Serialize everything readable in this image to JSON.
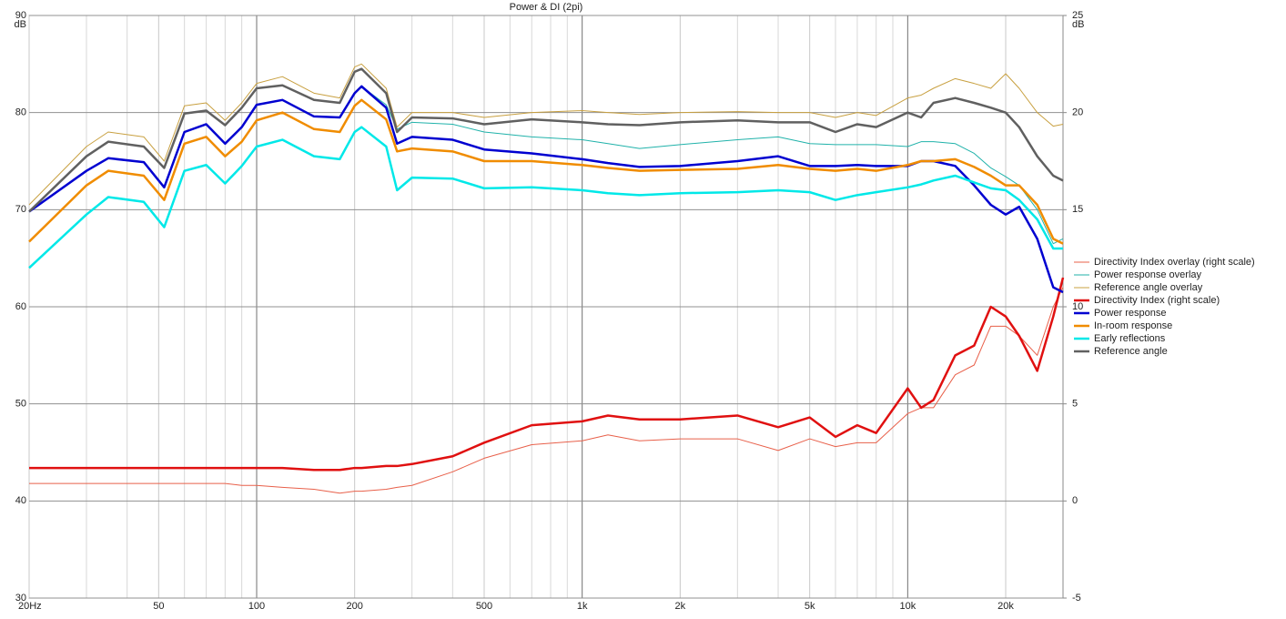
{
  "chart_data": {
    "type": "line",
    "title": "Power & DI (2pi)",
    "y_unit": "dB",
    "y2_unit": "dB",
    "log_x": true,
    "grid": true,
    "legend": "right",
    "xlim": [
      20,
      30000
    ],
    "ylim": [
      30,
      90
    ],
    "y2lim": [
      -5,
      25
    ],
    "xticks": [
      {
        "value": 20,
        "label": "20Hz"
      },
      50,
      100,
      200,
      500,
      {
        "value": 1000,
        "label": "1k"
      },
      {
        "value": 2000,
        "label": "2k"
      },
      {
        "value": 5000,
        "label": "5k"
      },
      {
        "value": 10000,
        "label": "10k"
      },
      {
        "value": 20000,
        "label": "20k"
      }
    ],
    "xminorticks": [
      30,
      40,
      60,
      70,
      80,
      90,
      300,
      400,
      600,
      700,
      800,
      900,
      3000,
      4000,
      6000,
      7000,
      8000,
      9000
    ],
    "yticks": [
      30,
      40,
      50,
      60,
      70,
      80,
      90
    ],
    "y2ticks": [
      -5,
      0,
      5,
      10,
      15,
      20,
      25
    ],
    "x": [
      20,
      30,
      35,
      45,
      52,
      60,
      70,
      80,
      90,
      100,
      120,
      150,
      180,
      200,
      210,
      250,
      270,
      300,
      400,
      500,
      700,
      1000,
      1200,
      1500,
      2000,
      3000,
      4000,
      5000,
      6000,
      7000,
      8000,
      10000,
      11000,
      12000,
      14000,
      16000,
      18000,
      20000,
      22000,
      25000,
      28000,
      30000
    ],
    "series": [
      {
        "name": "Directivity Index overlay (right scale)",
        "color": "#e8604a",
        "width": 1,
        "axis": "y2",
        "values": [
          0.9,
          0.9,
          0.9,
          0.9,
          0.9,
          0.9,
          0.9,
          0.9,
          0.8,
          0.8,
          0.7,
          0.6,
          0.4,
          0.5,
          0.5,
          0.6,
          0.7,
          0.8,
          1.5,
          2.2,
          2.9,
          3.1,
          3.4,
          3.1,
          3.2,
          3.2,
          2.6,
          3.2,
          2.8,
          3.0,
          3.0,
          4.5,
          4.8,
          4.8,
          6.5,
          7.0,
          9.0,
          9.0,
          8.5,
          7.5,
          10.0,
          11.0
        ]
      },
      {
        "name": "Power response overlay",
        "color": "#20b2aa",
        "width": 1,
        "values": [
          69.8,
          74.0,
          75.3,
          74.9,
          72.3,
          78.0,
          78.8,
          76.8,
          78.5,
          80.8,
          81.3,
          79.6,
          79.5,
          82.0,
          82.7,
          80.8,
          78.3,
          79.0,
          78.8,
          78.0,
          77.5,
          77.2,
          76.8,
          76.3,
          76.7,
          77.2,
          77.5,
          76.8,
          76.7,
          76.7,
          76.7,
          76.5,
          77.0,
          77.0,
          76.8,
          75.8,
          74.3,
          73.4,
          72.5,
          70.0,
          66.5,
          67.0
        ]
      },
      {
        "name": "Reference angle overlay",
        "color": "#c8a040",
        "width": 1,
        "values": [
          70.5,
          76.5,
          78.0,
          77.5,
          75.0,
          80.7,
          81.0,
          79.2,
          81.0,
          83.0,
          83.7,
          82.0,
          81.5,
          84.7,
          85.0,
          82.5,
          78.5,
          80.0,
          80.0,
          79.5,
          80.0,
          80.2,
          80.0,
          79.8,
          80.0,
          80.1,
          80.0,
          80.0,
          79.5,
          80.0,
          79.7,
          81.5,
          81.8,
          82.5,
          83.5,
          83.0,
          82.5,
          84.0,
          82.5,
          80.0,
          78.6,
          78.8
        ]
      },
      {
        "name": "Directivity Index (right scale)",
        "color": "#e01010",
        "width": 2.5,
        "axis": "y2",
        "values": [
          1.7,
          1.7,
          1.7,
          1.7,
          1.7,
          1.7,
          1.7,
          1.7,
          1.7,
          1.7,
          1.7,
          1.6,
          1.6,
          1.7,
          1.7,
          1.8,
          1.8,
          1.9,
          2.3,
          3.0,
          3.9,
          4.1,
          4.4,
          4.2,
          4.2,
          4.4,
          3.8,
          4.3,
          3.3,
          3.9,
          3.5,
          5.8,
          4.8,
          5.2,
          7.5,
          8.0,
          10.0,
          9.5,
          8.5,
          6.7,
          9.5,
          11.5
        ]
      },
      {
        "name": "Power response",
        "color": "#0000d0",
        "width": 2.5,
        "values": [
          69.8,
          74.0,
          75.3,
          74.9,
          72.3,
          78.0,
          78.8,
          76.8,
          78.5,
          80.8,
          81.3,
          79.6,
          79.5,
          82.0,
          82.7,
          80.5,
          76.8,
          77.5,
          77.2,
          76.2,
          75.8,
          75.2,
          74.8,
          74.4,
          74.5,
          75.0,
          75.5,
          74.5,
          74.5,
          74.6,
          74.5,
          74.5,
          75.0,
          75.0,
          74.5,
          72.5,
          70.5,
          69.5,
          70.3,
          67.0,
          62.0,
          61.5
        ]
      },
      {
        "name": "In-room response",
        "color": "#f08c00",
        "width": 2.5,
        "values": [
          66.7,
          72.5,
          74.0,
          73.5,
          71.0,
          76.8,
          77.5,
          75.5,
          77.0,
          79.2,
          80.0,
          78.3,
          78.0,
          80.7,
          81.3,
          79.3,
          76.0,
          76.3,
          76.0,
          75.0,
          75.0,
          74.6,
          74.3,
          74.0,
          74.1,
          74.2,
          74.6,
          74.2,
          74.0,
          74.2,
          74.0,
          74.6,
          75.0,
          75.0,
          75.2,
          74.4,
          73.5,
          72.5,
          72.5,
          70.5,
          67.0,
          66.5
        ]
      },
      {
        "name": "Early reflections",
        "color": "#00e8e8",
        "width": 2.5,
        "values": [
          64.0,
          69.5,
          71.3,
          70.8,
          68.2,
          74.0,
          74.6,
          72.7,
          74.5,
          76.5,
          77.2,
          75.5,
          75.2,
          78.0,
          78.5,
          76.5,
          72.0,
          73.3,
          73.2,
          72.2,
          72.3,
          72.0,
          71.7,
          71.5,
          71.7,
          71.8,
          72.0,
          71.8,
          71.0,
          71.5,
          71.8,
          72.3,
          72.6,
          73.0,
          73.5,
          72.8,
          72.2,
          72.0,
          71.0,
          69.0,
          66.0,
          66.0
        ]
      },
      {
        "name": "Reference angle",
        "color": "#606060",
        "width": 2.5,
        "values": [
          69.8,
          75.5,
          77.0,
          76.5,
          74.3,
          79.9,
          80.2,
          78.7,
          80.5,
          82.5,
          82.8,
          81.3,
          81.0,
          84.2,
          84.5,
          82.0,
          78.0,
          79.5,
          79.4,
          78.8,
          79.3,
          79.0,
          78.8,
          78.7,
          79.0,
          79.2,
          79.0,
          79.0,
          78.0,
          78.8,
          78.5,
          80.0,
          79.5,
          81.0,
          81.5,
          81.0,
          80.5,
          80.0,
          78.5,
          75.5,
          73.5,
          73.0
        ]
      }
    ]
  }
}
